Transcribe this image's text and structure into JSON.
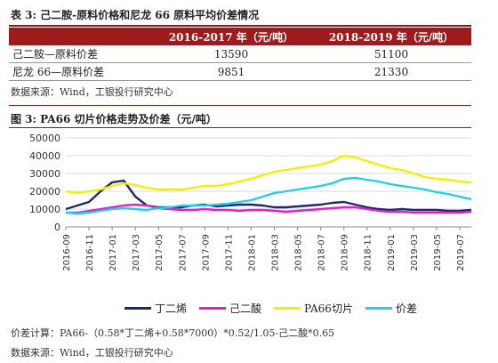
{
  "table": {
    "title": "表 3: 己二胺-原料价格和尼龙 66 原料平均价差情况",
    "columns": [
      "",
      "2016-2017 年（元/吨）",
      "2018-2019 年（元/吨）"
    ],
    "rows": [
      [
        "己二胺—原料价差",
        "13590",
        "51100"
      ],
      [
        "尼龙 66—原料价差",
        "9851",
        "21330"
      ]
    ],
    "source": "数据来源：Wind，工银投行研究中心"
  },
  "figure": {
    "title": "图 3: PA66 切片价格走势及价差（元/吨）",
    "formula": "价差计算：PA66-（0.58*丁二烯+0.58*7000）*0.52/1.05-己二酸*0.65",
    "source": "数据来源：Wind，工银投行研究中心"
  },
  "chart_data": {
    "type": "line",
    "ylim": [
      0,
      50000
    ],
    "yticks": [
      "0",
      "10000",
      "20000",
      "30000",
      "40000",
      "50000"
    ],
    "xticks": [
      "2016-09",
      "2016-11",
      "2017-01",
      "2017-03",
      "2017-05",
      "2017-07",
      "2017-09",
      "2017-11",
      "2018-01",
      "2018-03",
      "2018-05",
      "2018-07",
      "2018-09",
      "2018-11",
      "2019-01",
      "2019-03",
      "2019-05",
      "2019-07"
    ],
    "grid": true,
    "legend_position": "bottom",
    "x": [
      "2016-09",
      "2016-10",
      "2016-11",
      "2016-12",
      "2017-01",
      "2017-02",
      "2017-03",
      "2017-04",
      "2017-05",
      "2017-06",
      "2017-07",
      "2017-08",
      "2017-09",
      "2017-10",
      "2017-11",
      "2017-12",
      "2018-01",
      "2018-02",
      "2018-03",
      "2018-04",
      "2018-05",
      "2018-06",
      "2018-07",
      "2018-08",
      "2018-09",
      "2018-10",
      "2018-11",
      "2018-12",
      "2019-01",
      "2019-02",
      "2019-03",
      "2019-04",
      "2019-05",
      "2019-06",
      "2019-07",
      "2019-08"
    ],
    "series": [
      {
        "name": "丁二烯",
        "color": "#1f2a6b",
        "values": [
          10000,
          12000,
          14000,
          20000,
          25000,
          26000,
          17000,
          12000,
          11000,
          11000,
          11000,
          12000,
          12500,
          11500,
          12000,
          12500,
          12500,
          12000,
          11000,
          11000,
          11500,
          12000,
          12500,
          13500,
          14000,
          12500,
          11000,
          10000,
          9500,
          10000,
          9500,
          9500,
          9500,
          9000,
          9000,
          9500
        ]
      },
      {
        "name": "己二酸",
        "color": "#e020c8",
        "values": [
          8000,
          8000,
          9000,
          10000,
          11000,
          12000,
          12500,
          12000,
          10500,
          10000,
          9500,
          9500,
          10000,
          9500,
          9500,
          9000,
          9500,
          9500,
          9000,
          8500,
          9000,
          9500,
          10000,
          10500,
          11000,
          11000,
          10000,
          9000,
          8500,
          8500,
          8000,
          8000,
          8000,
          8000,
          8000,
          8500
        ]
      },
      {
        "name": "PA66切片",
        "color": "#f0f000",
        "values": [
          20000,
          19000,
          20000,
          21000,
          23000,
          24500,
          23500,
          22000,
          21000,
          21000,
          21000,
          22000,
          23000,
          23000,
          24000,
          25500,
          27000,
          29000,
          31000,
          32000,
          33000,
          34000,
          35000,
          37000,
          40000,
          39000,
          37000,
          35000,
          33000,
          32000,
          30000,
          28000,
          27000,
          26500,
          25500,
          25000
        ]
      },
      {
        "name": "价差",
        "color": "#20d0e8",
        "values": [
          8000,
          7500,
          8000,
          9000,
          10000,
          10500,
          10000,
          9500,
          10500,
          11000,
          12000,
          12000,
          12000,
          12500,
          13000,
          14000,
          15000,
          17000,
          19000,
          20000,
          21000,
          22000,
          23000,
          24500,
          27000,
          27500,
          26500,
          25500,
          24000,
          23000,
          22000,
          21000,
          19500,
          18500,
          17000,
          15500
        ]
      }
    ]
  }
}
